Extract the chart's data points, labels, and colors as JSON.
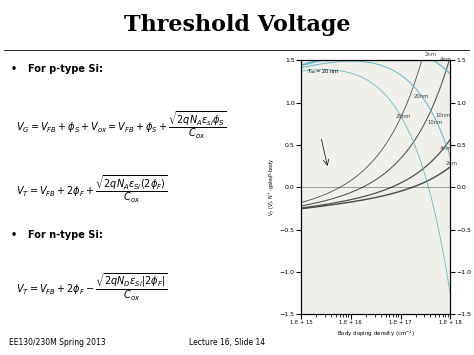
{
  "title": "Threshold Voltage",
  "title_fontsize": 16,
  "title_fontweight": "bold",
  "bg_color": "#ffffff",
  "text_color": "#000000",
  "footer_left": "EE130/230M Spring 2013",
  "footer_right": "Lecture 16, Slide 14",
  "bullet1": "For p-type Si:",
  "bullet2": "For n-type Si:",
  "plot_xlim": [
    1000000000000000.0,
    1e+18
  ],
  "plot_ylim": [
    -1.5,
    1.5
  ],
  "plot_xlabel": "Body doping density (cm$^{-1}$)",
  "plot_ylabel_left": "$V_T$ (V), N$^+$-gate/P-body",
  "plot_ylabel_right": "$V_T$ (V), P$^+$-gate/N-body",
  "tox_label": "$T_{ox} = 20$ nm",
  "cyan_color": "#5BB8C8",
  "dark_color": "#404040",
  "tox_values": [
    20,
    10,
    4,
    2
  ]
}
